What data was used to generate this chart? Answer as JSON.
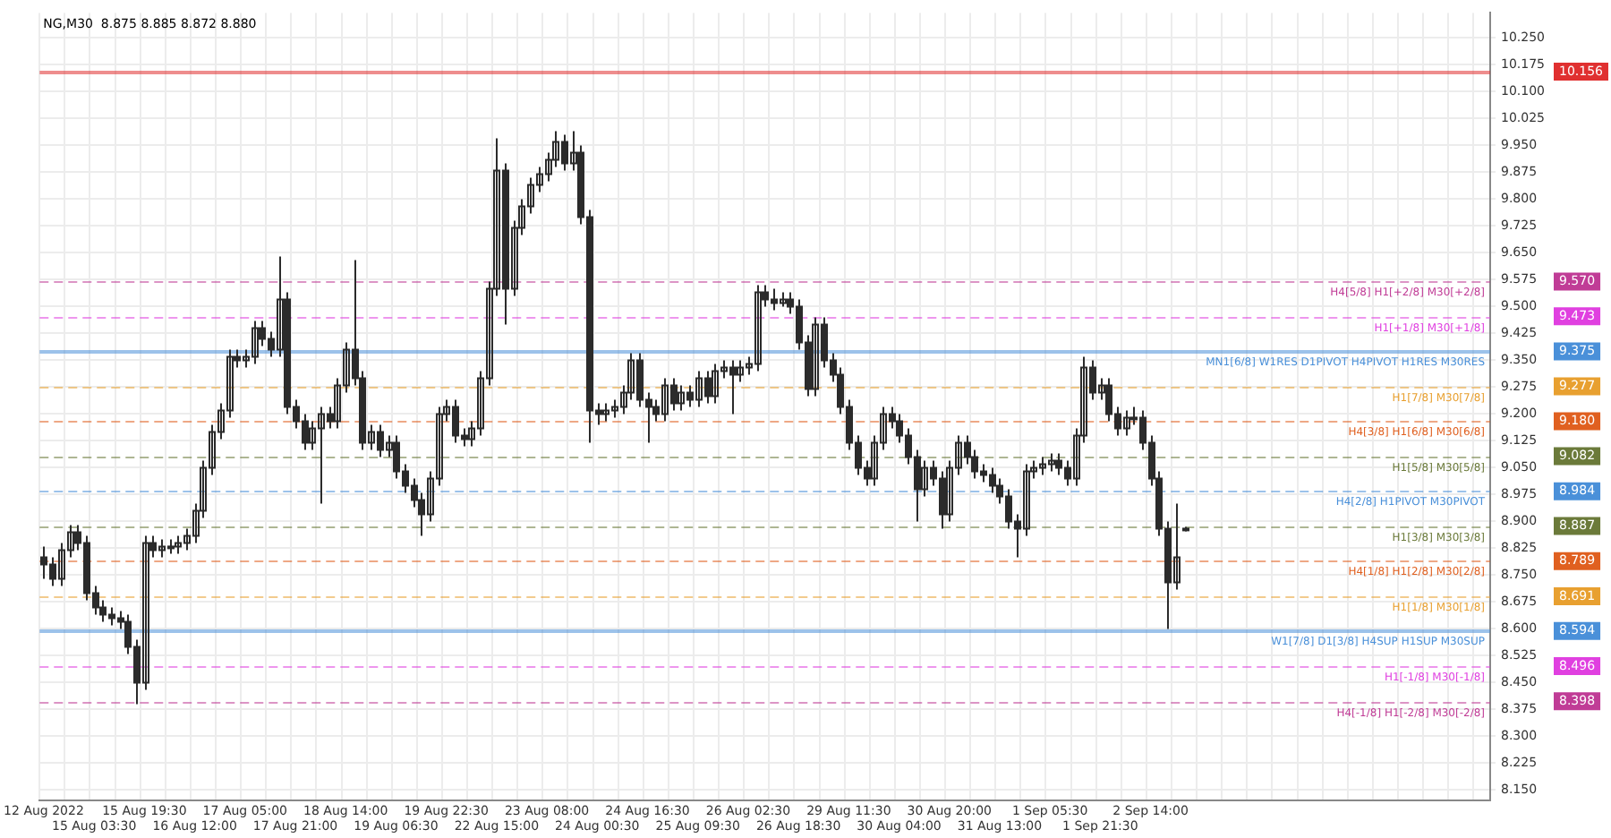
{
  "chart_data": {
    "type": "candlestick",
    "title": "NG,M30  8.875 8.885 8.872 8.880",
    "color": "#2b2b2b",
    "categories": [
      "12 Aug 2022",
      null,
      null,
      null,
      null,
      null,
      "15 Aug 03:30",
      null,
      null,
      null,
      null,
      null,
      "15 Aug 19:30",
      null,
      null,
      null,
      null,
      null,
      "16 Aug 12:00",
      null,
      null,
      null,
      null,
      null,
      "17 Aug 05:00",
      null,
      null,
      null,
      null,
      null,
      "17 Aug 21:00",
      null,
      null,
      null,
      null,
      null,
      "18 Aug 14:00",
      null,
      null,
      null,
      null,
      null,
      "19 Aug 06:30",
      null,
      null,
      null,
      null,
      null,
      "19 Aug 22:30",
      null,
      null,
      null,
      null,
      null,
      "22 Aug 15:00",
      null,
      null,
      null,
      null,
      null,
      "23 Aug 08:00",
      null,
      null,
      null,
      null,
      null,
      "24 Aug 00:30",
      null,
      null,
      null,
      null,
      null,
      "24 Aug 16:30",
      null,
      null,
      null,
      null,
      null,
      "25 Aug 09:30",
      null,
      null,
      null,
      null,
      null,
      "26 Aug 02:30",
      null,
      null,
      null,
      null,
      null,
      "26 Aug 18:30",
      null,
      null,
      null,
      null,
      null,
      "29 Aug 11:30",
      null,
      null,
      null,
      null,
      null,
      "30 Aug 04:00",
      null,
      null,
      null,
      null,
      null,
      "30 Aug 20:00",
      null,
      null,
      null,
      null,
      null,
      "31 Aug 13:00",
      null,
      null,
      null,
      null,
      null,
      "1 Sep 05:30",
      null,
      null,
      null,
      null,
      null,
      "1 Sep 21:30",
      null,
      null,
      null,
      null,
      null,
      "2 Sep 14:00",
      null,
      null,
      null,
      null,
      null,
      null,
      null,
      null,
      null,
      null,
      null,
      null,
      null,
      null,
      null,
      null,
      null,
      null,
      null,
      null,
      null,
      null,
      null,
      null,
      null,
      null,
      null,
      null,
      null,
      null,
      null,
      null,
      null,
      null,
      null,
      null,
      null,
      null,
      null,
      null
    ],
    "ohlc": [
      [
        8.8,
        8.83,
        8.74,
        8.78
      ],
      [
        8.78,
        8.8,
        8.72,
        8.74
      ],
      [
        8.74,
        8.84,
        8.72,
        8.82
      ],
      [
        8.82,
        8.89,
        8.8,
        8.87
      ],
      [
        8.87,
        8.89,
        8.82,
        8.84
      ],
      [
        8.84,
        8.86,
        8.68,
        8.7
      ],
      [
        8.7,
        8.72,
        8.64,
        8.66
      ],
      [
        8.66,
        8.68,
        8.62,
        8.64
      ],
      [
        8.64,
        8.66,
        8.61,
        8.63
      ],
      [
        8.63,
        8.65,
        8.6,
        8.62
      ],
      [
        8.62,
        8.64,
        8.53,
        8.55
      ],
      [
        8.55,
        8.57,
        8.39,
        8.45
      ],
      [
        8.45,
        8.86,
        8.43,
        8.84
      ],
      [
        8.84,
        8.86,
        8.8,
        8.82
      ],
      [
        8.82,
        8.85,
        8.8,
        8.83
      ],
      [
        8.83,
        8.85,
        8.81,
        8.83
      ],
      [
        8.83,
        8.86,
        8.81,
        8.84
      ],
      [
        8.84,
        8.88,
        8.82,
        8.86
      ],
      [
        8.86,
        8.95,
        8.84,
        8.93
      ],
      [
        8.93,
        9.07,
        8.91,
        9.05
      ],
      [
        9.05,
        9.17,
        9.03,
        9.15
      ],
      [
        9.15,
        9.23,
        9.13,
        9.21
      ],
      [
        9.21,
        9.38,
        9.19,
        9.36
      ],
      [
        9.36,
        9.38,
        9.33,
        9.35
      ],
      [
        9.35,
        9.38,
        9.33,
        9.36
      ],
      [
        9.36,
        9.46,
        9.34,
        9.44
      ],
      [
        9.44,
        9.46,
        9.39,
        9.41
      ],
      [
        9.41,
        9.43,
        9.36,
        9.38
      ],
      [
        9.38,
        9.64,
        9.36,
        9.52
      ],
      [
        9.52,
        9.54,
        9.2,
        9.22
      ],
      [
        9.22,
        9.24,
        9.16,
        9.18
      ],
      [
        9.18,
        9.2,
        9.1,
        9.12
      ],
      [
        9.12,
        9.18,
        9.1,
        9.16
      ],
      [
        9.16,
        9.22,
        8.95,
        9.2
      ],
      [
        9.2,
        9.22,
        9.16,
        9.18
      ],
      [
        9.18,
        9.3,
        9.16,
        9.28
      ],
      [
        9.28,
        9.4,
        9.26,
        9.38
      ],
      [
        9.38,
        9.63,
        9.28,
        9.3
      ],
      [
        9.3,
        9.32,
        9.1,
        9.12
      ],
      [
        9.12,
        9.17,
        9.1,
        9.15
      ],
      [
        9.15,
        9.17,
        9.08,
        9.1
      ],
      [
        9.1,
        9.14,
        9.08,
        9.12
      ],
      [
        9.12,
        9.14,
        9.02,
        9.04
      ],
      [
        9.04,
        9.06,
        8.98,
        9.0
      ],
      [
        9.0,
        9.02,
        8.94,
        8.96
      ],
      [
        8.96,
        8.98,
        8.86,
        8.92
      ],
      [
        8.92,
        9.04,
        8.9,
        9.02
      ],
      [
        9.02,
        9.22,
        9.0,
        9.2
      ],
      [
        9.2,
        9.24,
        9.18,
        9.22
      ],
      [
        9.22,
        9.24,
        9.12,
        9.14
      ],
      [
        9.14,
        9.16,
        9.11,
        9.13
      ],
      [
        9.13,
        9.18,
        9.11,
        9.16
      ],
      [
        9.16,
        9.32,
        9.14,
        9.3
      ],
      [
        9.3,
        9.57,
        9.28,
        9.55
      ],
      [
        9.55,
        9.97,
        9.53,
        9.88
      ],
      [
        9.88,
        9.9,
        9.45,
        9.55
      ],
      [
        9.55,
        9.74,
        9.53,
        9.72
      ],
      [
        9.72,
        9.8,
        9.7,
        9.78
      ],
      [
        9.78,
        9.86,
        9.76,
        9.84
      ],
      [
        9.84,
        9.89,
        9.82,
        9.87
      ],
      [
        9.87,
        9.93,
        9.85,
        9.91
      ],
      [
        9.91,
        9.99,
        9.89,
        9.96
      ],
      [
        9.96,
        9.98,
        9.88,
        9.9
      ],
      [
        9.9,
        9.99,
        9.88,
        9.93
      ],
      [
        9.93,
        9.95,
        9.73,
        9.75
      ],
      [
        9.75,
        9.77,
        9.12,
        9.21
      ],
      [
        9.21,
        9.23,
        9.17,
        9.2
      ],
      [
        9.2,
        9.23,
        9.18,
        9.21
      ],
      [
        9.21,
        9.24,
        9.19,
        9.22
      ],
      [
        9.22,
        9.28,
        9.2,
        9.26
      ],
      [
        9.26,
        9.37,
        9.24,
        9.35
      ],
      [
        9.35,
        9.37,
        9.22,
        9.24
      ],
      [
        9.24,
        9.26,
        9.12,
        9.22
      ],
      [
        9.22,
        9.24,
        9.18,
        9.2
      ],
      [
        9.2,
        9.3,
        9.18,
        9.28
      ],
      [
        9.28,
        9.3,
        9.21,
        9.23
      ],
      [
        9.23,
        9.28,
        9.21,
        9.26
      ],
      [
        9.26,
        9.28,
        9.22,
        9.24
      ],
      [
        9.24,
        9.32,
        9.22,
        9.3
      ],
      [
        9.3,
        9.32,
        9.23,
        9.25
      ],
      [
        9.25,
        9.34,
        9.23,
        9.32
      ],
      [
        9.32,
        9.35,
        9.3,
        9.33
      ],
      [
        9.33,
        9.35,
        9.2,
        9.31
      ],
      [
        9.31,
        9.35,
        9.29,
        9.33
      ],
      [
        9.33,
        9.36,
        9.31,
        9.34
      ],
      [
        9.34,
        9.56,
        9.32,
        9.54
      ],
      [
        9.54,
        9.56,
        9.5,
        9.52
      ],
      [
        9.52,
        9.55,
        9.49,
        9.51
      ],
      [
        9.51,
        9.54,
        9.5,
        9.52
      ],
      [
        9.52,
        9.54,
        9.48,
        9.5
      ],
      [
        9.5,
        9.52,
        9.38,
        9.4
      ],
      [
        9.4,
        9.42,
        9.25,
        9.27
      ],
      [
        9.27,
        9.47,
        9.25,
        9.45
      ],
      [
        9.45,
        9.47,
        9.33,
        9.35
      ],
      [
        9.35,
        9.37,
        9.29,
        9.31
      ],
      [
        9.31,
        9.33,
        9.2,
        9.22
      ],
      [
        9.22,
        9.24,
        9.1,
        9.12
      ],
      [
        9.12,
        9.14,
        9.03,
        9.05
      ],
      [
        9.05,
        9.07,
        9.0,
        9.02
      ],
      [
        9.02,
        9.14,
        9.0,
        9.12
      ],
      [
        9.12,
        9.22,
        9.1,
        9.2
      ],
      [
        9.2,
        9.22,
        9.16,
        9.18
      ],
      [
        9.18,
        9.2,
        9.12,
        9.14
      ],
      [
        9.14,
        9.16,
        9.06,
        9.08
      ],
      [
        9.08,
        9.1,
        8.9,
        8.99
      ],
      [
        8.99,
        9.07,
        8.97,
        9.05
      ],
      [
        9.05,
        9.07,
        9.0,
        9.02
      ],
      [
        9.02,
        9.04,
        8.88,
        8.92
      ],
      [
        8.92,
        9.07,
        8.9,
        9.05
      ],
      [
        9.05,
        9.14,
        9.03,
        9.12
      ],
      [
        9.12,
        9.14,
        9.06,
        9.08
      ],
      [
        9.08,
        9.1,
        9.02,
        9.04
      ],
      [
        9.04,
        9.06,
        9.01,
        9.03
      ],
      [
        9.03,
        9.05,
        8.98,
        9.0
      ],
      [
        9.0,
        9.02,
        8.95,
        8.97
      ],
      [
        8.97,
        8.99,
        8.88,
        8.9
      ],
      [
        8.9,
        8.92,
        8.8,
        8.88
      ],
      [
        8.88,
        9.06,
        8.86,
        9.04
      ],
      [
        9.04,
        9.07,
        9.02,
        9.05
      ],
      [
        9.05,
        9.08,
        9.03,
        9.06
      ],
      [
        9.06,
        9.09,
        9.04,
        9.07
      ],
      [
        9.07,
        9.09,
        9.03,
        9.05
      ],
      [
        9.05,
        9.07,
        9.0,
        9.02
      ],
      [
        9.02,
        9.16,
        9.0,
        9.14
      ],
      [
        9.14,
        9.36,
        9.12,
        9.33
      ],
      [
        9.33,
        9.35,
        9.24,
        9.26
      ],
      [
        9.26,
        9.3,
        9.24,
        9.28
      ],
      [
        9.28,
        9.3,
        9.18,
        9.2
      ],
      [
        9.2,
        9.22,
        9.14,
        9.16
      ],
      [
        9.16,
        9.21,
        9.14,
        9.19
      ],
      [
        9.19,
        9.22,
        9.17,
        9.19
      ],
      [
        9.19,
        9.21,
        9.1,
        9.12
      ],
      [
        9.12,
        9.14,
        9.0,
        9.02
      ],
      [
        9.02,
        9.04,
        8.86,
        8.88
      ],
      [
        8.88,
        8.9,
        8.6,
        8.73
      ],
      [
        8.73,
        8.95,
        8.71,
        8.8
      ],
      [
        8.875,
        8.885,
        8.872,
        8.88
      ],
      null,
      null,
      null,
      null,
      null,
      null,
      null,
      null,
      null,
      null,
      null,
      null,
      null,
      null,
      null,
      null,
      null,
      null,
      null,
      null,
      null,
      null,
      null,
      null,
      null,
      null,
      null,
      null,
      null,
      null,
      null,
      null,
      null,
      null,
      null,
      null
    ],
    "ylim": [
      8.12,
      10.32
    ],
    "yticks": [
      {
        "value": 10.25,
        "label": "10.250"
      },
      {
        "value": 10.175,
        "label": "10.175"
      },
      {
        "value": 10.1,
        "label": "10.100"
      },
      {
        "value": 10.025,
        "label": "10.025"
      },
      {
        "value": 9.95,
        "label": "9.950"
      },
      {
        "value": 9.875,
        "label": "9.875"
      },
      {
        "value": 9.8,
        "label": "9.800"
      },
      {
        "value": 9.725,
        "label": "9.725"
      },
      {
        "value": 9.65,
        "label": "9.650"
      },
      {
        "value": 9.575,
        "label": "9.575"
      },
      {
        "value": 9.5,
        "label": "9.500"
      },
      {
        "value": 9.425,
        "label": "9.425"
      },
      {
        "value": 9.35,
        "label": "9.350"
      },
      {
        "value": 9.275,
        "label": "9.275"
      },
      {
        "value": 9.2,
        "label": "9.200"
      },
      {
        "value": 9.125,
        "label": "9.125"
      },
      {
        "value": 9.05,
        "label": "9.050"
      },
      {
        "value": 8.975,
        "label": "8.975"
      },
      {
        "value": 8.9,
        "label": "8.900"
      },
      {
        "value": 8.825,
        "label": "8.825"
      },
      {
        "value": 8.75,
        "label": "8.750"
      },
      {
        "value": 8.675,
        "label": "8.675"
      },
      {
        "value": 8.6,
        "label": "8.600"
      },
      {
        "value": 8.525,
        "label": "8.525"
      },
      {
        "value": 8.45,
        "label": "8.450"
      },
      {
        "value": 8.375,
        "label": "8.375"
      },
      {
        "value": 8.3,
        "label": "8.300"
      },
      {
        "value": 8.225,
        "label": "8.225"
      },
      {
        "value": 8.15,
        "label": "8.150"
      }
    ],
    "grid": true,
    "annotations": [
      "10.156",
      "9.570",
      "9.473",
      "9.375",
      "9.277",
      "9.180",
      "9.082",
      "8.984",
      "8.887",
      "8.789",
      "8.691",
      "8.594",
      "8.496",
      "8.398"
    ],
    "ref_lines": [
      {
        "axis": "y",
        "value": 10.156,
        "color": "#e03030",
        "line_style": "solid"
      },
      {
        "axis": "y",
        "value": 9.57,
        "label": "H4[5/8] H1[+2/8] M30[+2/8]",
        "color": "#c03c96",
        "line_style": "dashed"
      },
      {
        "axis": "y",
        "value": 9.473,
        "label": "H1[+1/8] M30[+1/8]",
        "color": "#e040e0",
        "line_style": "dashed"
      },
      {
        "axis": "y",
        "value": 9.375,
        "label": "MN1[6/8] W1RES D1PIVOT H4PIVOT H1RES M30RES",
        "color": "#4a90d9",
        "line_style": "solid"
      },
      {
        "axis": "y",
        "value": 9.277,
        "label": "H1[7/8] M30[7/8]",
        "color": "#e8a030",
        "line_style": "dashed"
      },
      {
        "axis": "y",
        "value": 9.18,
        "label": "H4[3/8] H1[6/8] M30[6/8]",
        "color": "#e06020",
        "line_style": "dashed"
      },
      {
        "axis": "y",
        "value": 9.082,
        "label": "H1[5/8] M30[5/8]",
        "color": "#6b7a3a",
        "line_style": "dashed"
      },
      {
        "axis": "y",
        "value": 8.984,
        "label": "H4[2/8] H1PIVOT M30PIVOT",
        "color": "#4a90d9",
        "line_style": "dashed"
      },
      {
        "axis": "y",
        "value": 8.887,
        "label": "H1[3/8] M30[3/8]",
        "color": "#6b7a3a",
        "line_style": "dashed"
      },
      {
        "axis": "y",
        "value": 8.789,
        "label": "H4[1/8] H1[2/8] M30[2/8]",
        "color": "#e06020",
        "line_style": "dashed"
      },
      {
        "axis": "y",
        "value": 8.691,
        "label": "H1[1/8] M30[1/8]",
        "color": "#e8a030",
        "line_style": "dashed"
      },
      {
        "axis": "y",
        "value": 8.594,
        "label": "W1[7/8] D1[3/8] H4SUP H1SUP M30SUP",
        "color": "#4a90d9",
        "line_style": "solid"
      },
      {
        "axis": "y",
        "value": 8.496,
        "label": "H1[-1/8] M30[-1/8]",
        "color": "#e040e0",
        "line_style": "dashed"
      },
      {
        "axis": "y",
        "value": 8.398,
        "label": "H4[-1/8] H1[-2/8] M30[-2/8]",
        "color": "#c03c96",
        "line_style": "dashed"
      }
    ]
  }
}
